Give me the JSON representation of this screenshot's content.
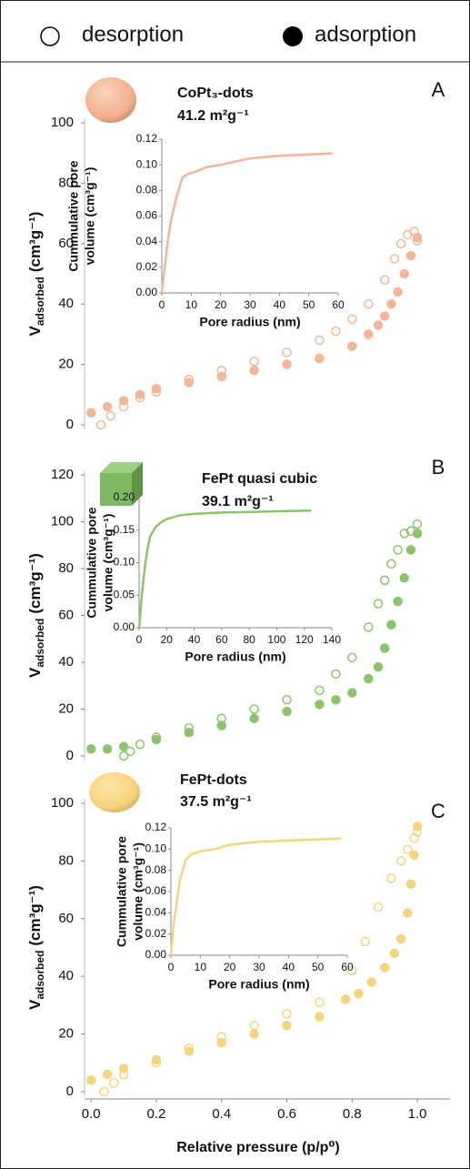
{
  "chart_data": [
    {
      "type": "scatter",
      "panel": "A",
      "name": "CoPt₃-dots",
      "surface_area": "41.2 m²g⁻¹",
      "color": "#f4b696",
      "y_label": {
        "main": "V",
        "sub": "adsorbed",
        "unit": "(cm³g⁻¹)"
      },
      "xlim": [
        -0.02,
        1.1
      ],
      "ylim": [
        0,
        100
      ],
      "yticks": [
        0,
        20,
        40,
        60,
        80,
        100
      ],
      "series": [
        {
          "name": "desorption",
          "filled": false,
          "x": [
            0.03,
            0.06,
            0.1,
            0.15,
            0.2,
            0.3,
            0.4,
            0.5,
            0.6,
            0.7,
            0.75,
            0.8,
            0.85,
            0.9,
            0.93,
            0.95,
            0.97,
            0.99,
            1.0
          ],
          "values": [
            0,
            3,
            6,
            9,
            11,
            15,
            18,
            21,
            24,
            28,
            31,
            35,
            40,
            48,
            55,
            60,
            63,
            64,
            61
          ]
        },
        {
          "name": "adsorption",
          "filled": true,
          "x": [
            0.0,
            0.05,
            0.1,
            0.15,
            0.2,
            0.3,
            0.4,
            0.5,
            0.6,
            0.7,
            0.8,
            0.85,
            0.88,
            0.9,
            0.92,
            0.94,
            0.96,
            0.98,
            1.0
          ],
          "values": [
            4,
            6,
            8,
            10,
            12,
            14,
            16,
            18,
            20,
            22,
            26,
            30,
            33,
            36,
            40,
            44,
            50,
            56,
            62
          ]
        }
      ]
    },
    {
      "type": "line",
      "color": "#f4b696",
      "x_label": "Pore radius (nm)",
      "y_label": [
        "Cummulative pore",
        "volume (cm³g⁻¹)"
      ],
      "x": [
        0,
        1,
        2,
        3,
        5,
        7,
        9,
        12,
        15,
        20,
        30,
        40,
        50,
        58
      ],
      "values": [
        0,
        0.02,
        0.04,
        0.055,
        0.075,
        0.09,
        0.093,
        0.095,
        0.098,
        0.1,
        0.105,
        0.107,
        0.108,
        0.109
      ],
      "xlim": [
        0,
        60
      ],
      "xticks": [
        0,
        10,
        20,
        30,
        40,
        50,
        60
      ],
      "ylim": [
        0,
        0.12
      ],
      "yticks": [
        {
          "value": 0,
          "label": "0.00"
        },
        0.02,
        0.04,
        0.06,
        0.08,
        {
          "value": 0.1,
          "label": "0.10"
        },
        0.12
      ]
    },
    {
      "type": "scatter",
      "panel": "B",
      "name": "FePt quasi cubic",
      "surface_area": "39.1 m²g⁻¹",
      "color": "#8cc46c",
      "y_label": {
        "main": "V",
        "sub": "adsorbed",
        "unit": "(cm³g⁻¹)"
      },
      "xlim": [
        -0.02,
        1.1
      ],
      "ylim": [
        0,
        120
      ],
      "yticks": [
        0,
        20,
        40,
        60,
        80,
        100,
        120
      ],
      "series": [
        {
          "name": "desorption",
          "filled": false,
          "x": [
            0.1,
            0.12,
            0.15,
            0.2,
            0.3,
            0.4,
            0.5,
            0.6,
            0.7,
            0.75,
            0.8,
            0.85,
            0.88,
            0.9,
            0.92,
            0.94,
            0.96,
            0.98,
            1.0
          ],
          "values": [
            0,
            2,
            5,
            8,
            12,
            16,
            20,
            24,
            28,
            35,
            42,
            55,
            65,
            75,
            82,
            88,
            95,
            96,
            99
          ]
        },
        {
          "name": "adsorption",
          "filled": true,
          "x": [
            0.0,
            0.05,
            0.1,
            0.2,
            0.3,
            0.4,
            0.5,
            0.6,
            0.7,
            0.75,
            0.8,
            0.85,
            0.88,
            0.9,
            0.92,
            0.94,
            0.96,
            0.98,
            1.0
          ],
          "values": [
            3,
            3,
            4,
            7,
            10,
            13,
            16,
            19,
            22,
            24,
            27,
            33,
            38,
            46,
            56,
            66,
            76,
            88,
            95
          ]
        }
      ]
    },
    {
      "type": "line",
      "color": "#8cc46c",
      "x_label": "Pore radius (nm)",
      "y_label": [
        "Cummulative pore",
        "volume (cm³g⁻¹)"
      ],
      "x": [
        0,
        2,
        4,
        6,
        8,
        12,
        16,
        20,
        30,
        40,
        60,
        80,
        100,
        125
      ],
      "values": [
        0,
        0.05,
        0.09,
        0.12,
        0.14,
        0.155,
        0.162,
        0.167,
        0.173,
        0.175,
        0.177,
        0.178,
        0.179,
        0.18
      ],
      "xlim": [
        0,
        140
      ],
      "xticks": [
        0,
        20,
        40,
        60,
        80,
        100,
        120,
        140
      ],
      "ylim": [
        0,
        0.2
      ],
      "yticks": [
        {
          "value": 0,
          "label": "0.00"
        },
        0.05,
        {
          "value": 0.1,
          "label": "0.10"
        },
        0.15,
        {
          "value": 0.2,
          "label": "0.20"
        }
      ]
    },
    {
      "type": "scatter",
      "panel": "C",
      "name": "FePt-dots",
      "surface_area": "37.5 m²g⁻¹",
      "color": "#f7d47c",
      "y_label": {
        "main": "V",
        "sub": "adsorbed",
        "unit": "(cm³g⁻¹)"
      },
      "x_label": "Relative pressure (p/p⁰)",
      "xlim": [
        -0.02,
        1.1
      ],
      "xticks": [
        {
          "value": 0,
          "label": "0.0"
        },
        0.2,
        0.4,
        0.6,
        0.8,
        {
          "value": 1,
          "label": "1.0"
        }
      ],
      "ylim": [
        0,
        100
      ],
      "yticks": [
        0,
        20,
        40,
        60,
        80,
        100
      ],
      "series": [
        {
          "name": "desorption",
          "filled": false,
          "x": [
            0.04,
            0.07,
            0.1,
            0.2,
            0.3,
            0.4,
            0.5,
            0.6,
            0.7,
            0.8,
            0.84,
            0.88,
            0.92,
            0.95,
            0.97,
            0.99,
            1.0
          ],
          "values": [
            0,
            3,
            6,
            10,
            15,
            19,
            23,
            27,
            31,
            42,
            52,
            64,
            74,
            80,
            84,
            88,
            90
          ]
        },
        {
          "name": "adsorption",
          "filled": true,
          "x": [
            0.0,
            0.05,
            0.1,
            0.2,
            0.3,
            0.4,
            0.5,
            0.6,
            0.7,
            0.78,
            0.82,
            0.86,
            0.9,
            0.93,
            0.95,
            0.97,
            0.98,
            0.99,
            1.0
          ],
          "values": [
            4,
            6,
            8,
            11,
            14,
            17,
            20,
            23,
            26,
            32,
            34,
            38,
            43,
            48,
            53,
            62,
            72,
            82,
            92
          ]
        }
      ]
    },
    {
      "type": "line",
      "color": "#f7d47c",
      "x_label": "Pore radius (nm)",
      "y_label": [
        "Cummulative pore",
        "volume (cm³g⁻¹)"
      ],
      "x": [
        0,
        1,
        2,
        3,
        4,
        5,
        7,
        10,
        15,
        20,
        30,
        40,
        50,
        58
      ],
      "values": [
        0,
        0.03,
        0.05,
        0.07,
        0.08,
        0.09,
        0.095,
        0.098,
        0.1,
        0.104,
        0.107,
        0.108,
        0.109,
        0.11
      ],
      "xlim": [
        0,
        60
      ],
      "xticks": [
        0,
        10,
        20,
        30,
        40,
        50,
        60
      ],
      "ylim": [
        0,
        0.12
      ],
      "yticks": [
        {
          "value": 0,
          "label": "0.00"
        },
        0.02,
        0.04,
        0.06,
        0.08,
        {
          "value": 0.1,
          "label": "0.10"
        },
        0.12
      ]
    }
  ]
}
